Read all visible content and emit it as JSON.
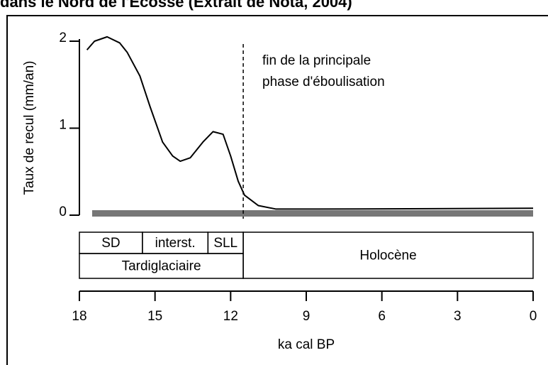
{
  "chart_data": {
    "type": "line",
    "title": "dans le Nord de l'Ecosse (Extrait de Nota, 2004)",
    "y_label": "Taux de recul (mm/an)",
    "x_label": "ka cal BP",
    "annotation": [
      "fin de la principale",
      "phase d'éboulisation"
    ],
    "vline": 11.5,
    "xlim": [
      18,
      0
    ],
    "xticks": [
      18,
      15,
      12,
      9,
      6,
      3,
      0
    ],
    "ylim": [
      0,
      2
    ],
    "yticks": [
      0,
      1,
      2
    ],
    "series": [
      {
        "color": "#000000",
        "x": [
          17.7,
          17.4,
          16.9,
          16.4,
          16.1,
          15.6,
          15.2,
          14.7,
          14.3,
          14.0,
          13.6,
          13.1,
          12.7,
          12.3,
          12.0,
          11.7,
          11.45,
          10.9,
          10.2,
          8.5,
          4,
          0
        ],
        "values": [
          1.9,
          2.0,
          2.05,
          1.98,
          1.87,
          1.6,
          1.25,
          0.84,
          0.68,
          0.62,
          0.66,
          0.84,
          0.96,
          0.93,
          0.68,
          0.39,
          0.23,
          0.11,
          0.07,
          0.07,
          0.075,
          0.08
        ]
      }
    ],
    "periods": [
      {
        "label": "SD",
        "start": 18,
        "end": 15.5,
        "row": 0
      },
      {
        "label": "interst.",
        "start": 15.5,
        "end": 12.9,
        "row": 0
      },
      {
        "label": "SLL",
        "start": 12.9,
        "end": 11.5,
        "row": 0
      },
      {
        "label": "Tardiglaciaire",
        "start": 18,
        "end": 11.5,
        "row": 1
      },
      {
        "label": "Holocène",
        "start": 11.5,
        "end": 0,
        "row": 2
      }
    ]
  }
}
